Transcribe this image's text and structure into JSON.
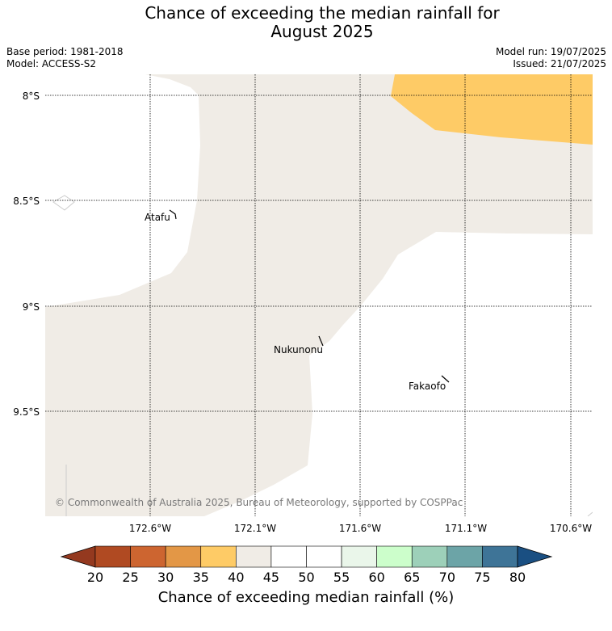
{
  "header": {
    "title_line1": "Chance of exceeding the median rainfall for",
    "title_line2": "August 2025",
    "base_period": "Base period: 1981-2018",
    "model": "Model: ACCESS-S2",
    "model_run": "Model run: 19/07/2025",
    "issued": "Issued: 21/07/2025"
  },
  "map": {
    "lat_labels": [
      "8°S",
      "8.5°S",
      "9°S",
      "9.5°S"
    ],
    "lon_labels": [
      "172.6°W",
      "172.1°W",
      "171.6°W",
      "171.1°W",
      "170.6°W"
    ],
    "places": [
      "Atafu",
      "Nukunonu",
      "Fakaofo"
    ],
    "copyright": "© Commonwealth of Australia 2025, Bureau of Meteorology, supported by COSPPac",
    "regions": [
      {
        "category": "35-40",
        "color": "#fecb66"
      },
      {
        "category": "40-45",
        "color": "#f0ece6"
      },
      {
        "category": "45-55",
        "color": "#ffffff"
      }
    ]
  },
  "colorbar": {
    "title": "Chance of exceeding median rainfall (%)",
    "ticks": [
      "20",
      "25",
      "30",
      "35",
      "40",
      "45",
      "50",
      "55",
      "60",
      "65",
      "70",
      "75",
      "80"
    ],
    "colors": [
      "#b04a22",
      "#cd6530",
      "#e39746",
      "#fecb66",
      "#f0ece6",
      "#ffffff",
      "#ffffff",
      "#eaf6ea",
      "#ccfecb",
      "#9dd0b9",
      "#6ca4a7",
      "#3e7497"
    ],
    "under_color": "#94391f",
    "over_color": "#1a4f82"
  }
}
